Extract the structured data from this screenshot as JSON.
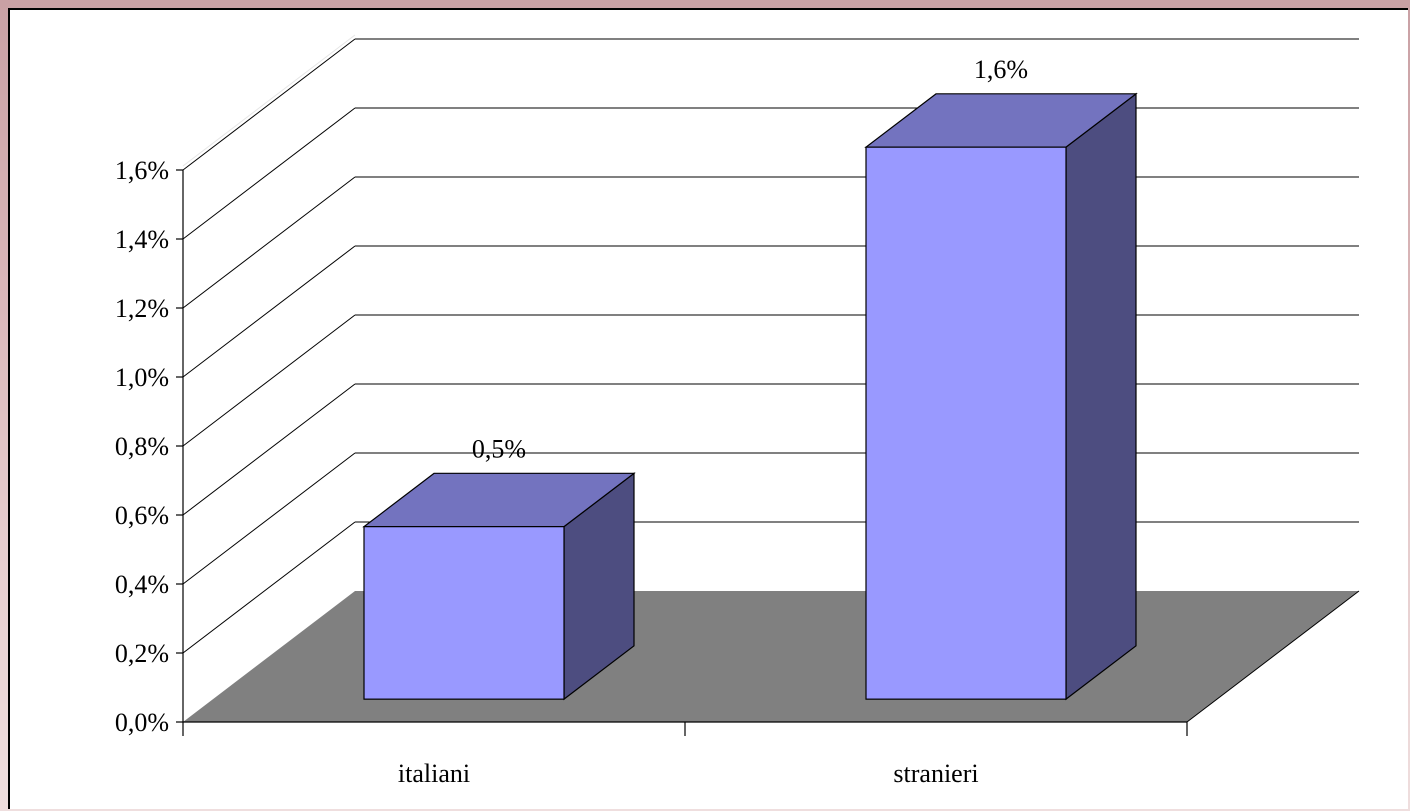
{
  "chart_data": {
    "type": "bar",
    "style": "3d-column",
    "categories": [
      "italiani",
      "stranieri"
    ],
    "values": [
      0.5,
      1.6
    ],
    "data_labels": [
      "0,5%",
      "1,6%"
    ],
    "y_ticks": [
      "0,0%",
      "0,2%",
      "0,4%",
      "0,6%",
      "0,8%",
      "1,0%",
      "1,2%",
      "1,4%",
      "1,6%"
    ],
    "ylim": [
      0,
      1.6
    ],
    "title": "",
    "xlabel": "",
    "ylabel": "",
    "grid": true,
    "legend": "none",
    "colors": {
      "bar_front": "#9999ff",
      "bar_top": "#7373bf",
      "bar_side": "#4d4d80",
      "floor": "#808080"
    }
  }
}
